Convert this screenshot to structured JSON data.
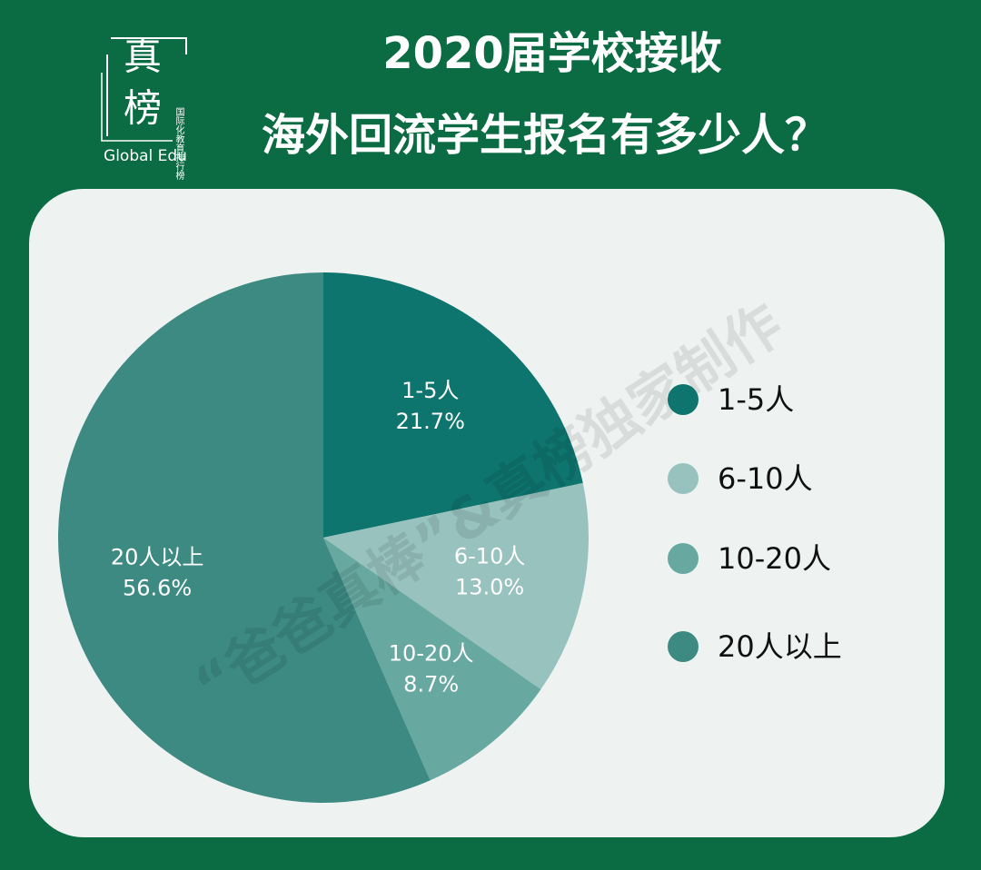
{
  "chart_data": {
    "type": "pie",
    "title": "2020届学校接收",
    "subtitle": "海外回流学生报名有多少人？",
    "logo": {
      "chars": [
        "真",
        "榜"
      ],
      "tagline": "国际化教育排行榜",
      "brand": "Global Edu"
    },
    "watermark": "“爸爸真棒”&真榜独家制作",
    "categories": [
      "1-5人",
      "6-10人",
      "10-20人",
      "20人以上"
    ],
    "values": [
      21.7,
      13.0,
      8.7,
      56.6
    ],
    "value_labels": [
      "21.7%",
      "13.0%",
      "8.7%",
      "56.6%"
    ],
    "colors": [
      "#0e746e",
      "#97c2be",
      "#67a8a0",
      "#3d8a83"
    ]
  }
}
